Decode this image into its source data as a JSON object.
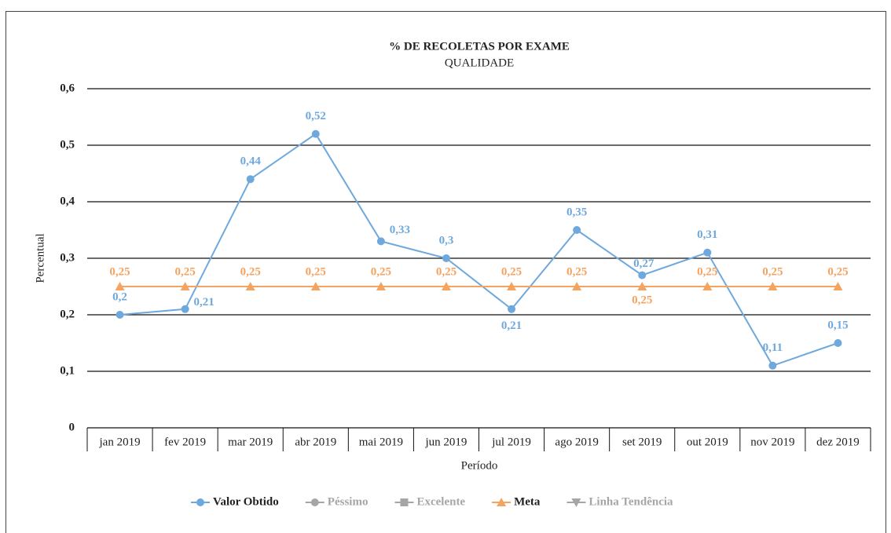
{
  "chart_data": {
    "type": "line",
    "title": "% DE RECOLETAS POR EXAME",
    "subtitle": "QUALIDADE",
    "y_label": "Percentual",
    "x_label": "Período",
    "categories": [
      "jan 2019",
      "fev 2019",
      "mar 2019",
      "abr 2019",
      "mai 2019",
      "jun 2019",
      "jul 2019",
      "ago 2019",
      "set 2019",
      "out 2019",
      "nov 2019",
      "dez 2019"
    ],
    "series": [
      {
        "name": "Valor Obtido",
        "color": "#6fa8dc",
        "marker": "circle",
        "values": [
          0.2,
          0.21,
          0.44,
          0.52,
          0.33,
          0.3,
          0.21,
          0.35,
          0.27,
          0.31,
          0.11,
          0.15
        ],
        "value_labels": [
          "0,2",
          "0,21",
          "0,44",
          "0,52",
          "0,33",
          "0,3",
          "0,21",
          "0,35",
          "0,27",
          "0,31",
          "0,11",
          "0,15"
        ]
      },
      {
        "name": "Péssimo",
        "color": "#a6a6a6",
        "marker": "circle",
        "values": [
          null,
          null,
          null,
          null,
          null,
          null,
          null,
          null,
          null,
          null,
          null,
          null
        ]
      },
      {
        "name": "Excelente",
        "color": "#a6a6a6",
        "marker": "square",
        "values": [
          null,
          null,
          null,
          null,
          null,
          null,
          null,
          null,
          null,
          null,
          null,
          null
        ]
      },
      {
        "name": "Meta",
        "color": "#f4a460",
        "marker": "triangle",
        "values": [
          0.25,
          0.25,
          0.25,
          0.25,
          0.25,
          0.25,
          0.25,
          0.25,
          0.25,
          0.25,
          0.25,
          0.25
        ],
        "value_labels": [
          "0,25",
          "0,25",
          "0,25",
          "0,25",
          "0,25",
          "0,25",
          "0,25",
          "0,25",
          "0,25",
          "0,25",
          "0,25",
          "0,25"
        ]
      },
      {
        "name": "Linha Tendência",
        "color": "#a6a6a6",
        "marker": "triangle-down",
        "values": [
          null,
          null,
          null,
          null,
          null,
          null,
          null,
          null,
          null,
          null,
          null,
          null
        ]
      }
    ],
    "ylim": [
      0,
      0.6
    ],
    "yticks": [
      0,
      {
        "value": 0.1,
        "label": "0,1"
      },
      {
        "value": 0.2,
        "label": "0,2"
      },
      {
        "value": 0.3,
        "label": "0,3"
      },
      {
        "value": 0.4,
        "label": "0,4"
      },
      {
        "value": 0.5,
        "label": "0,5"
      },
      {
        "value": 0.6,
        "label": "0,6"
      }
    ],
    "grid": true,
    "legend": "bottom"
  }
}
